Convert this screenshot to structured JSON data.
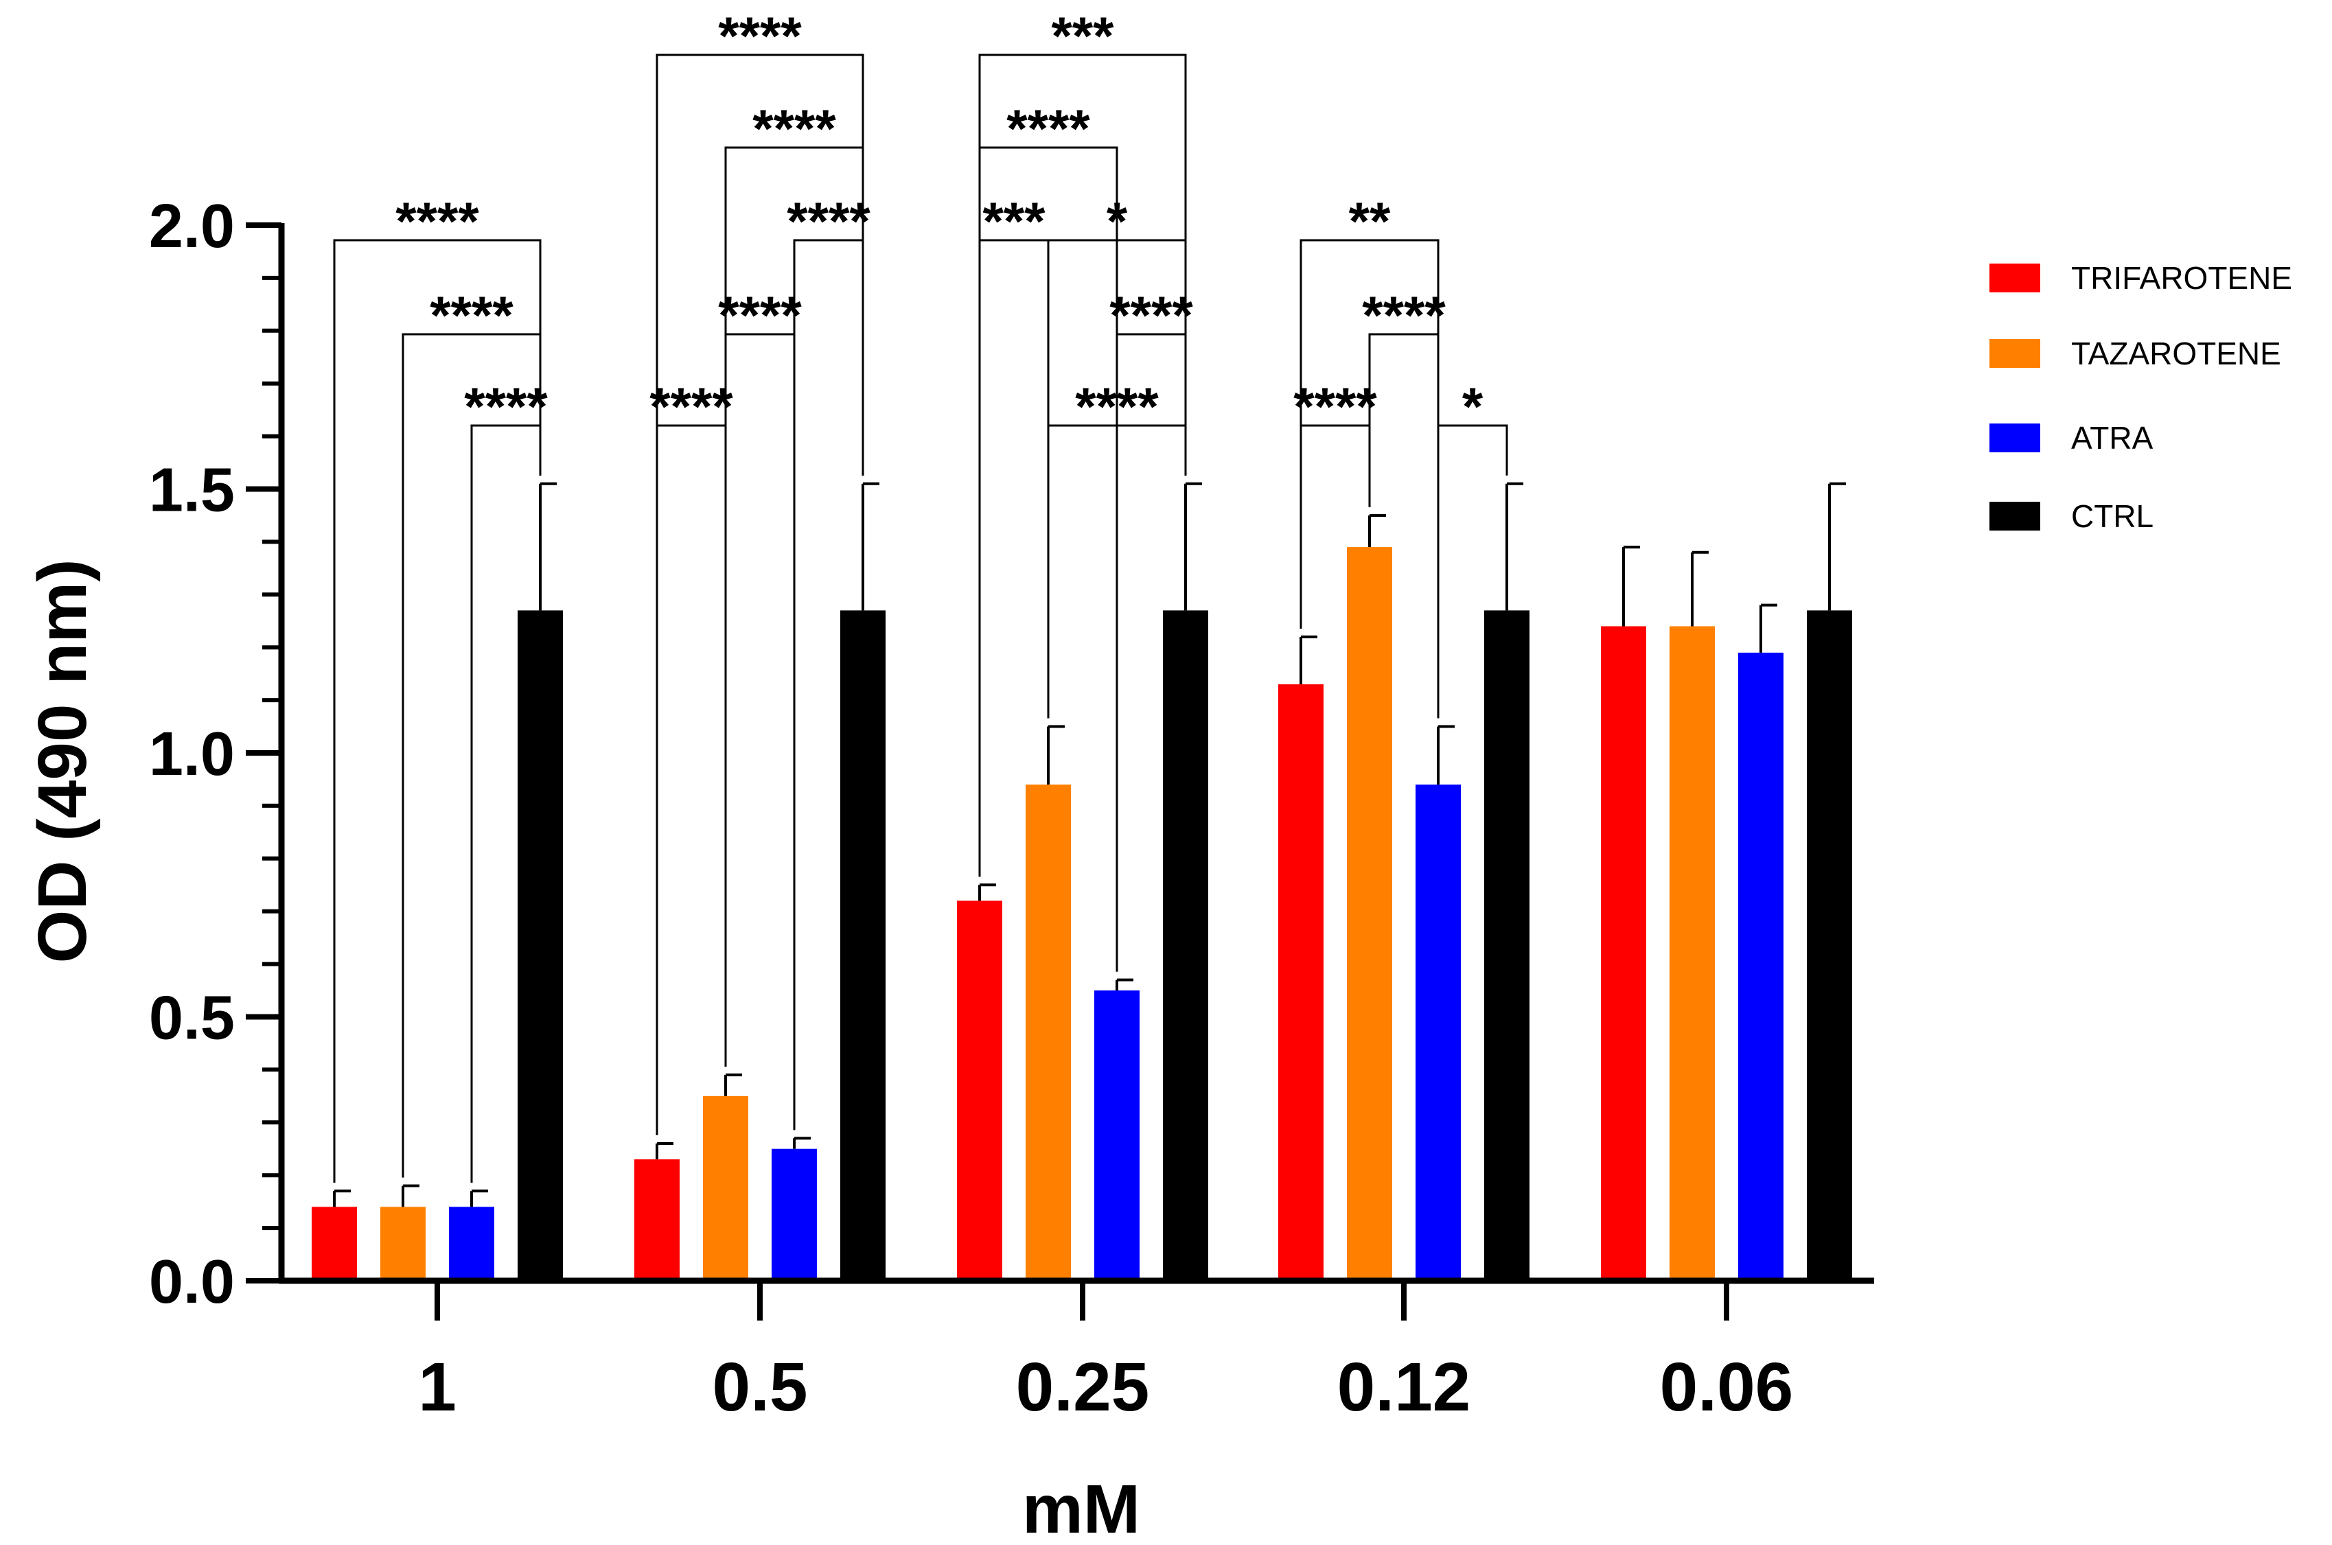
{
  "chart_data": {
    "type": "bar",
    "title": "",
    "xlabel": "mM",
    "ylabel": "OD (490 nm)",
    "ylim": [
      0,
      2.0
    ],
    "yticks": [
      "0.0",
      "0.5",
      "1.0",
      "1.5",
      "2.0"
    ],
    "categories": [
      "1",
      "0.5",
      "0.25",
      "0.12",
      "0.06"
    ],
    "legend_position": "right",
    "series": [
      {
        "name": "TRIFAROTENE",
        "color": "#ff0000",
        "values": [
          0.14,
          0.23,
          0.72,
          1.13,
          1.24
        ],
        "errors": [
          0.03,
          0.03,
          0.03,
          0.09,
          0.15
        ]
      },
      {
        "name": "TAZAROTENE",
        "color": "#ff8000",
        "values": [
          0.14,
          0.35,
          0.94,
          1.39,
          1.24
        ],
        "errors": [
          0.04,
          0.04,
          0.11,
          0.06,
          0.14
        ]
      },
      {
        "name": "ATRA",
        "color": "#0000ff",
        "values": [
          0.14,
          0.25,
          0.55,
          0.94,
          1.19
        ],
        "errors": [
          0.03,
          0.02,
          0.02,
          0.11,
          0.09
        ]
      },
      {
        "name": "CTRL",
        "color": "#000000",
        "values": [
          1.27,
          1.27,
          1.27,
          1.27,
          1.27
        ],
        "errors": [
          0.24,
          0.24,
          0.24,
          0.24,
          0.24
        ]
      }
    ],
    "significance": [
      {
        "group": 0,
        "from": 0,
        "to": 3,
        "level": 3,
        "label": "****"
      },
      {
        "group": 0,
        "from": 1,
        "to": 3,
        "level": 2,
        "label": "****"
      },
      {
        "group": 0,
        "from": 2,
        "to": 3,
        "level": 1,
        "label": "****"
      },
      {
        "group": 1,
        "from": 0,
        "to": 3,
        "level": 5,
        "label": "****"
      },
      {
        "group": 1,
        "from": 1,
        "to": 3,
        "level": 4,
        "label": "****"
      },
      {
        "group": 1,
        "from": 2,
        "to": 3,
        "level": 3,
        "label": "****"
      },
      {
        "group": 1,
        "from": 1,
        "to": 2,
        "level": 2,
        "label": "****"
      },
      {
        "group": 1,
        "from": 0,
        "to": 1,
        "level": 1,
        "label": "****"
      },
      {
        "group": 2,
        "from": 0,
        "to": 3,
        "level": 5,
        "label": "***"
      },
      {
        "group": 2,
        "from": 0,
        "to": 2,
        "level": 4,
        "label": "****"
      },
      {
        "group": 2,
        "from": 0,
        "to": 1,
        "level": 3,
        "label": "***"
      },
      {
        "group": 2,
        "from": 1,
        "to": 3,
        "level": 3,
        "label": "*"
      },
      {
        "group": 2,
        "from": 2,
        "to": 3,
        "level": 2,
        "label": "****"
      },
      {
        "group": 2,
        "from": 1,
        "to": 3,
        "level": 1,
        "label": "****"
      },
      {
        "group": 3,
        "from": 0,
        "to": 2,
        "level": 3,
        "label": "**"
      },
      {
        "group": 3,
        "from": 1,
        "to": 2,
        "level": 2,
        "label": "****"
      },
      {
        "group": 3,
        "from": 0,
        "to": 1,
        "level": 1,
        "label": "****"
      },
      {
        "group": 3,
        "from": 2,
        "to": 3,
        "level": 1,
        "label": "*"
      }
    ]
  }
}
